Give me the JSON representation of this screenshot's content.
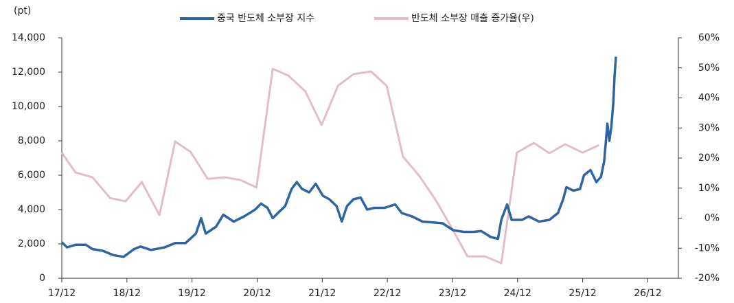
{
  "chart_data": {
    "type": "line",
    "y_unit": "(pt)",
    "xlim": [
      2017.92,
      2027.39
    ],
    "xticks": [
      {
        "value": 2017.92,
        "label": "17/12"
      },
      {
        "value": 2018.92,
        "label": "18/12"
      },
      {
        "value": 2019.92,
        "label": "19/12"
      },
      {
        "value": 2020.92,
        "label": "20/12"
      },
      {
        "value": 2021.92,
        "label": "21/12"
      },
      {
        "value": 2022.92,
        "label": "22/12"
      },
      {
        "value": 2023.92,
        "label": "23/12"
      },
      {
        "value": 2024.92,
        "label": "24/12"
      },
      {
        "value": 2025.92,
        "label": "25/12"
      },
      {
        "value": 2026.92,
        "label": "26/12"
      }
    ],
    "ylim": [
      0,
      14000
    ],
    "yticks": [
      0,
      {
        "value": 2000,
        "label": "2,000"
      },
      {
        "value": 4000,
        "label": "4,000"
      },
      {
        "value": 6000,
        "label": "6,000"
      },
      {
        "value": 8000,
        "label": "8,000"
      },
      {
        "value": 10000,
        "label": "10,000"
      },
      {
        "value": 12000,
        "label": "12,000"
      },
      {
        "value": 14000,
        "label": "14,000"
      }
    ],
    "y2lim": [
      -20,
      60
    ],
    "y2ticks": [
      {
        "value": -20,
        "label": "-20%"
      },
      {
        "value": -10,
        "label": "-10%"
      },
      {
        "value": 0,
        "label": "0%"
      },
      {
        "value": 10,
        "label": "10%"
      },
      {
        "value": 20,
        "label": "20%"
      },
      {
        "value": 30,
        "label": "30%"
      },
      {
        "value": 40,
        "label": "40%"
      },
      {
        "value": 50,
        "label": "50%"
      },
      {
        "value": 60,
        "label": "60%"
      }
    ],
    "series": [
      {
        "name": "중국 반도체 소부장 지수",
        "color": "#2e64a0",
        "axis": "y",
        "x": [
          2017.92,
          2018.0,
          2018.13,
          2018.29,
          2018.39,
          2018.55,
          2018.71,
          2018.87,
          2019.03,
          2019.13,
          2019.29,
          2019.5,
          2019.66,
          2019.82,
          2019.98,
          2020.06,
          2020.13,
          2020.29,
          2020.4,
          2020.56,
          2020.72,
          2020.89,
          2020.98,
          2021.08,
          2021.16,
          2021.24,
          2021.35,
          2021.45,
          2021.53,
          2021.61,
          2021.72,
          2021.82,
          2021.93,
          2022.03,
          2022.14,
          2022.22,
          2022.3,
          2022.4,
          2022.51,
          2022.61,
          2022.72,
          2022.88,
          2023.04,
          2023.14,
          2023.3,
          2023.46,
          2023.62,
          2023.77,
          2023.93,
          2024.09,
          2024.25,
          2024.36,
          2024.51,
          2024.62,
          2024.67,
          2024.76,
          2024.83,
          2024.99,
          2025.09,
          2025.25,
          2025.41,
          2025.54,
          2025.62,
          2025.67,
          2025.78,
          2025.88,
          2025.94,
          2026.04,
          2026.13,
          2026.2,
          2026.25,
          2026.3,
          2026.33,
          2026.36,
          2026.39,
          2026.41,
          2026.43
        ],
        "values": [
          2100,
          1800,
          1950,
          1950,
          1700,
          1600,
          1350,
          1250,
          1700,
          1850,
          1650,
          1800,
          2050,
          2050,
          2600,
          3500,
          2600,
          3000,
          3700,
          3300,
          3600,
          4000,
          4350,
          4100,
          3500,
          3800,
          4200,
          5200,
          5600,
          5200,
          5000,
          5500,
          4800,
          4600,
          4200,
          3300,
          4200,
          4600,
          4700,
          4000,
          4100,
          4100,
          4300,
          3800,
          3600,
          3300,
          3250,
          3200,
          2800,
          2700,
          2700,
          2750,
          2400,
          2300,
          3400,
          4300,
          3400,
          3400,
          3600,
          3300,
          3400,
          3800,
          4600,
          5300,
          5100,
          5200,
          6000,
          6300,
          5600,
          5900,
          6800,
          9000,
          8000,
          8800,
          10200,
          11800,
          12900
        ]
      },
      {
        "name": "반도체 소부장 매출 증가율(우)",
        "color": "#e2bdc8",
        "axis": "y2",
        "x": [
          2017.92,
          2018.13,
          2018.39,
          2018.66,
          2018.9,
          2019.15,
          2019.42,
          2019.66,
          2019.9,
          2020.16,
          2020.42,
          2020.66,
          2020.91,
          2021.16,
          2021.4,
          2021.66,
          2021.91,
          2022.16,
          2022.4,
          2022.67,
          2022.91,
          2023.16,
          2023.42,
          2023.67,
          2023.9,
          2024.15,
          2024.42,
          2024.67,
          2024.91,
          2025.17,
          2025.41,
          2025.65,
          2025.92,
          2026.17
        ],
        "values": [
          21.8,
          15.2,
          13.6,
          6.7,
          5.6,
          12,
          1,
          25.5,
          22,
          13.1,
          13.6,
          12.7,
          10.2,
          49.7,
          47.4,
          42.2,
          31,
          44,
          47.9,
          48.8,
          44,
          20.5,
          13.8,
          5.8,
          -2.9,
          -12.7,
          -12.7,
          -15,
          21.8,
          25,
          21.6,
          24.6,
          21.8,
          24.3
        ]
      }
    ]
  }
}
